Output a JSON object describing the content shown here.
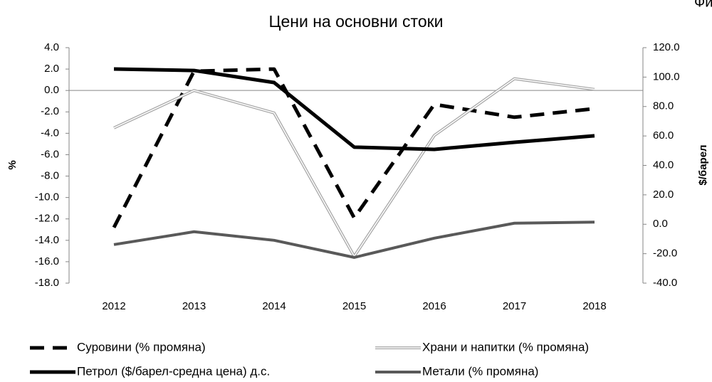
{
  "chart_data": {
    "type": "line",
    "title": "Цени на основни стоки",
    "annotation": "Фигура",
    "y_label": "%",
    "y2_label": "$/барел",
    "categories": [
      "2012",
      "2013",
      "2014",
      "2015",
      "2016",
      "2017",
      "2018"
    ],
    "series": [
      {
        "name": "Суровини (% промяна)",
        "color": "#000000",
        "style": "dashed",
        "values": [
          -12.8,
          1.8,
          2.0,
          -11.9,
          -1.3,
          -2.5,
          -1.7
        ]
      },
      {
        "name": "Храни и напитки (% промяна)",
        "color": "#a6a6a6",
        "style": "double",
        "values": [
          -3.5,
          0.0,
          -2.1,
          -15.5,
          -4.2,
          1.1,
          0.1
        ]
      },
      {
        "name": "Петрол ($/барел-средна цена) д.с.",
        "color": "#000000",
        "style": "solid",
        "axis": "y2",
        "values": [
          105.5,
          104.5,
          96.3,
          52.4,
          50.9,
          55.7,
          60.1
        ]
      },
      {
        "name": "Метали (% промяна)",
        "color": "#595959",
        "style": "solid",
        "values": [
          -14.4,
          -13.2,
          -14.0,
          -15.6,
          -13.8,
          -12.4,
          -12.3
        ]
      }
    ],
    "ylim": [
      -18,
      4
    ],
    "yticks": [
      {
        "value": 4,
        "label": "4.0"
      },
      {
        "value": 2,
        "label": "2.0"
      },
      {
        "value": 0,
        "label": "0.0"
      },
      {
        "value": -2,
        "label": "-2.0"
      },
      {
        "value": -4,
        "label": "-4.0"
      },
      {
        "value": -6,
        "label": "-6.0"
      },
      {
        "value": -8,
        "label": "-8.0"
      },
      {
        "value": -10,
        "label": "-10.0"
      },
      {
        "value": -12,
        "label": "-12.0"
      },
      {
        "value": -14,
        "label": "-14.0"
      },
      {
        "value": -16,
        "label": "-16.0"
      },
      {
        "value": -18,
        "label": "-18.0"
      }
    ],
    "y2lim": [
      -40,
      120
    ],
    "y2ticks": [
      {
        "value": 120,
        "label": "120.0"
      },
      {
        "value": 100,
        "label": "100.0"
      },
      {
        "value": 80,
        "label": "80.0"
      },
      {
        "value": 60,
        "label": "60.0"
      },
      {
        "value": 40,
        "label": "40.0"
      },
      {
        "value": 20,
        "label": "20.0"
      },
      {
        "value": 0,
        "label": "0.0"
      },
      {
        "value": -20,
        "label": "-20.0"
      },
      {
        "value": -40,
        "label": "-40.0"
      }
    ],
    "legend": "bottom"
  }
}
